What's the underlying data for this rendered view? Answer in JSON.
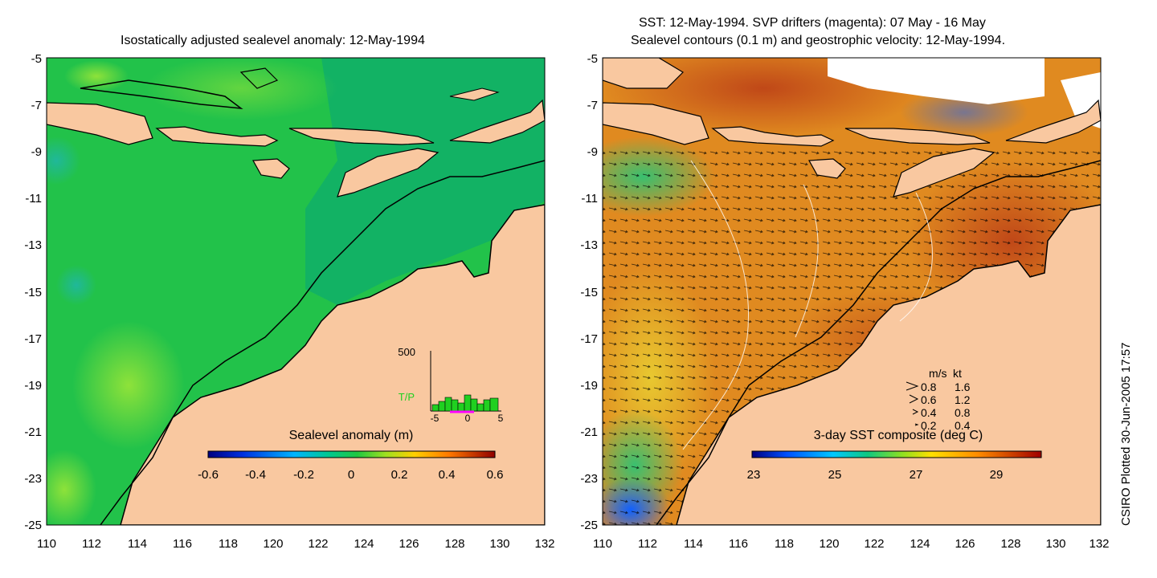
{
  "left_panel": {
    "title": "Isostatically adjusted sealevel anomaly: 12-May-1994",
    "x_ticks": [
      "110",
      "112",
      "114",
      "116",
      "118",
      "120",
      "122",
      "124",
      "126",
      "128",
      "130",
      "132"
    ],
    "y_ticks": [
      "-5",
      "-7",
      "-9",
      "-11",
      "-13",
      "-15",
      "-17",
      "-19",
      "-21",
      "-23",
      "-25"
    ],
    "colorbar": {
      "label": "Sealevel anomaly (m)",
      "ticks": [
        "-0.6",
        "-0.4",
        "-0.2",
        "0",
        "0.2",
        "0.4",
        "0.6"
      ]
    },
    "inset": {
      "y_label": "500",
      "series_label": "T/P",
      "x_ticks": [
        "-5",
        "0",
        "5"
      ]
    }
  },
  "right_panel": {
    "title_line1": "SST: 12-May-1994. SVP drifters (magenta): 07 May - 16 May",
    "title_line2": "Sealevel contours (0.1 m) and geostrophic velocity: 12-May-1994.",
    "x_ticks": [
      "110",
      "112",
      "114",
      "116",
      "118",
      "120",
      "122",
      "124",
      "126",
      "128",
      "130",
      "132"
    ],
    "y_ticks": [
      "-5",
      "-7",
      "-9",
      "-11",
      "-13",
      "-15",
      "-17",
      "-19",
      "-21",
      "-23",
      "-25"
    ],
    "colorbar": {
      "label": "3-day SST composite (deg C)",
      "ticks": [
        "23",
        "25",
        "27",
        "29"
      ]
    },
    "legend": {
      "header_ms": "m/s",
      "header_kt": "kt",
      "rows": [
        {
          "ms": "0.8",
          "kt": "1.6"
        },
        {
          "ms": "0.6",
          "kt": "1.2"
        },
        {
          "ms": "0.4",
          "kt": "0.8"
        },
        {
          "ms": "0.2",
          "kt": "0.4"
        }
      ]
    }
  },
  "credit": "CSIRO Plotted 30-Jun-2005 17:57",
  "colors": {
    "land": "#f9c8a0",
    "ocean_left": "#22c24a",
    "ocean_left_shelf": "#10b068",
    "ocean_right": "#e08a20",
    "ocean_right_warm": "#c86018"
  }
}
